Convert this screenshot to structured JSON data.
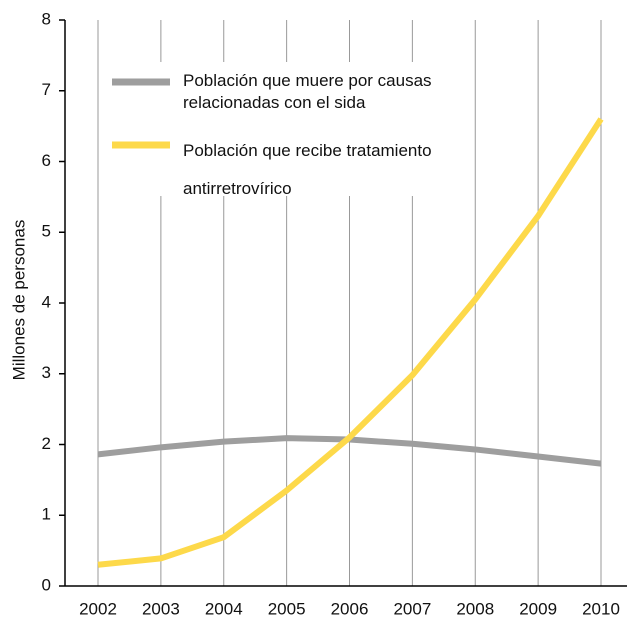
{
  "chart_data": {
    "type": "line",
    "y_label": "Millones de personas",
    "categories": [
      "2002",
      "2003",
      "2004",
      "2005",
      "2006",
      "2007",
      "2008",
      "2009",
      "2010"
    ],
    "series": [
      {
        "name": "Población que muere por causas relacionadas con el sida",
        "color": "#9e9e9e",
        "values": [
          1.86,
          1.96,
          2.04,
          2.09,
          2.07,
          2.01,
          1.93,
          1.83,
          1.73
        ]
      },
      {
        "name": "Población que recibe tratamiento antirretrovírico",
        "color": "#fdd94a",
        "values": [
          0.3,
          0.39,
          0.69,
          1.35,
          2.1,
          2.98,
          4.05,
          5.23,
          6.6
        ]
      }
    ],
    "ylim": [
      0,
      8
    ],
    "yticks": [
      0,
      1,
      2,
      3,
      4,
      5,
      6,
      7,
      8
    ],
    "grid": true
  }
}
